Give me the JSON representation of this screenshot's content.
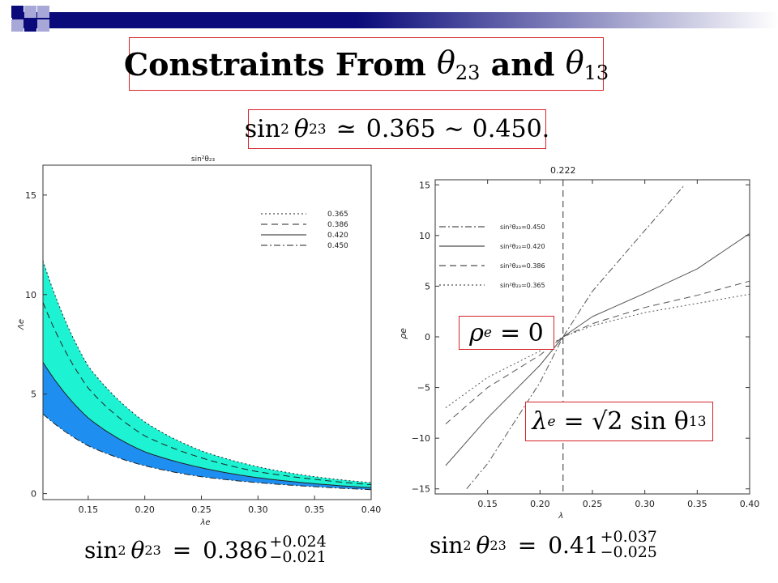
{
  "slide": {
    "title_prefix": "Constraints From ",
    "title_theta1_sub": "23",
    "title_mid": " and ",
    "title_theta2_sub": "13",
    "range_eq": {
      "lhs": "sin",
      "sq": "2",
      "theta": "θ",
      "sub": "23",
      "rel": "≃",
      "lo": "0.365",
      "sep": "∼",
      "hi": "0.450."
    },
    "rho_eq": {
      "sym": "ρ",
      "sub": "e",
      "rhs": "= 0"
    },
    "lambda_eq": {
      "sym": "λ",
      "sub": "e",
      "rhs": "= √2 sin θ",
      "rhs_sub": "13"
    },
    "left_result": {
      "lhs": "sin",
      "sq": "2",
      "theta": "θ",
      "sub": "23",
      "eq": "=",
      "value": "0.386",
      "plus": "+0.024",
      "minus": "−0.021"
    },
    "right_result": {
      "lhs": "sin",
      "sq": "2",
      "theta": "θ",
      "sub": "23",
      "eq": "=",
      "value": "0.41",
      "plus": "+0.037",
      "minus": "−0.025"
    }
  },
  "colors": {
    "accent_red": "#d6242a",
    "header_navy": "#0a0a7a",
    "header_lavender": "#a7a7d8",
    "fill_cyan": "#1df2d2",
    "fill_blue": "#1e8ff0"
  },
  "chart_data": [
    {
      "type": "area",
      "title": "sin²θ₂₃",
      "xlabel": "λe",
      "ylabel": "Λe",
      "xlim": [
        0.11,
        0.4
      ],
      "ylim": [
        -0.3,
        16.5
      ],
      "x_ticks": [
        "0.15",
        "0.20",
        "0.25",
        "0.30",
        "0.35",
        "0.40"
      ],
      "y_ticks": [
        "0",
        "5",
        "10",
        "15"
      ],
      "legend_position": "top-right",
      "series": [
        {
          "name": "0.365",
          "style": "dotted",
          "x": [
            0.11,
            0.15,
            0.2,
            0.25,
            0.3,
            0.35,
            0.4
          ],
          "values": [
            11.7,
            6.4,
            3.6,
            2.15,
            1.35,
            0.85,
            0.55
          ]
        },
        {
          "name": "0.386",
          "style": "dashed",
          "x": [
            0.11,
            0.15,
            0.2,
            0.25,
            0.3,
            0.35,
            0.4
          ],
          "values": [
            9.6,
            5.3,
            2.9,
            1.8,
            1.1,
            0.72,
            0.45
          ]
        },
        {
          "name": "0.420",
          "style": "solid",
          "x": [
            0.11,
            0.15,
            0.2,
            0.25,
            0.3,
            0.35,
            0.4
          ],
          "values": [
            6.6,
            3.8,
            2.1,
            1.3,
            0.8,
            0.5,
            0.3
          ]
        },
        {
          "name": "0.450",
          "style": "dashdot",
          "x": [
            0.11,
            0.15,
            0.2,
            0.25,
            0.3,
            0.35,
            0.4
          ],
          "values": [
            4.0,
            2.4,
            1.4,
            0.85,
            0.55,
            0.35,
            0.2
          ]
        }
      ]
    },
    {
      "type": "line",
      "title": "0.222",
      "xlabel": "λ",
      "ylabel": "ρe",
      "xlim": [
        0.1,
        0.4
      ],
      "ylim": [
        -15.5,
        15.5
      ],
      "x_ticks": [
        "0.15",
        "0.20",
        "0.25",
        "0.30",
        "0.35",
        "0.40"
      ],
      "y_ticks": [
        "15",
        "10",
        "5",
        "0",
        "−5",
        "−10",
        "−15"
      ],
      "vline": 0.222,
      "legend_position": "top-left",
      "series": [
        {
          "name": "sin²θ₂₃=0.450",
          "style": "dashdot",
          "x": [
            0.13,
            0.15,
            0.2,
            0.222,
            0.25,
            0.3,
            0.338
          ],
          "values": [
            -15,
            -12.5,
            -4.5,
            0,
            4.5,
            10.5,
            15
          ]
        },
        {
          "name": "sin²θ₂₃=0.420",
          "style": "solid",
          "x": [
            0.11,
            0.15,
            0.2,
            0.222,
            0.25,
            0.3,
            0.35,
            0.4
          ],
          "values": [
            -12.7,
            -8.0,
            -2.8,
            0,
            2.0,
            4.3,
            6.7,
            10.2
          ]
        },
        {
          "name": "sin²θ₂₃=0.386",
          "style": "dashed",
          "x": [
            0.11,
            0.15,
            0.2,
            0.222,
            0.25,
            0.3,
            0.35,
            0.4
          ],
          "values": [
            -8.6,
            -5.0,
            -1.8,
            0,
            1.3,
            2.9,
            4.1,
            5.5
          ]
        },
        {
          "name": "sin²θ₂₃=0.365",
          "style": "dotted",
          "x": [
            0.11,
            0.15,
            0.2,
            0.222,
            0.25,
            0.3,
            0.35,
            0.4
          ],
          "values": [
            -7.0,
            -4.0,
            -1.4,
            0,
            1.1,
            2.4,
            3.3,
            4.2
          ]
        }
      ]
    }
  ]
}
